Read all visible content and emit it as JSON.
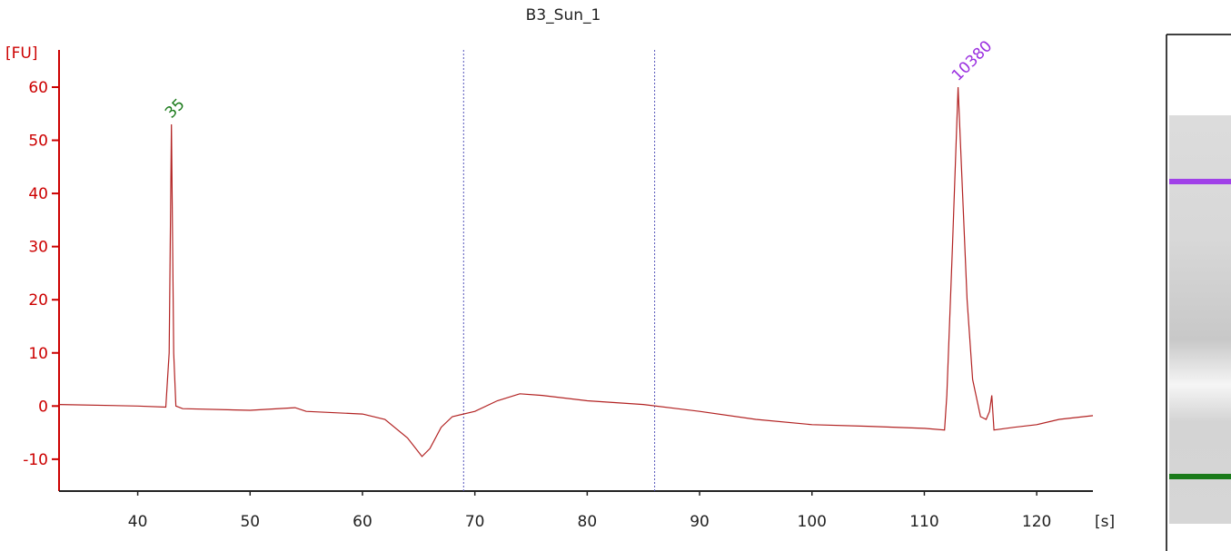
{
  "chart_data": {
    "type": "line",
    "title": "B3_Sun_1",
    "y_label": "[FU]",
    "x_label": "[s]",
    "color": "#b22222",
    "axis_color": "#cc0000",
    "x": [
      33,
      40,
      42.5,
      42.8,
      43,
      43.2,
      43.4,
      44,
      50,
      54,
      55,
      60,
      62,
      64,
      65.3,
      66,
      67,
      68,
      70,
      72,
      74,
      76,
      80,
      85,
      90,
      95,
      100,
      105,
      110,
      111.8,
      112,
      112.5,
      113,
      113.3,
      113.8,
      114.3,
      115,
      115.5,
      115.8,
      116,
      116.2,
      118,
      120,
      122,
      125
    ],
    "values": [
      0.3,
      0,
      -0.2,
      10,
      53,
      10,
      0,
      -0.5,
      -0.8,
      -0.3,
      -1,
      -1.5,
      -2.5,
      -6,
      -9.5,
      -8,
      -4,
      -2,
      -1,
      1,
      2.3,
      2,
      1,
      0.3,
      -1,
      -2.5,
      -3.5,
      -3.8,
      -4.2,
      -4.5,
      2,
      30,
      60,
      45,
      20,
      5,
      -2,
      -2.5,
      -1,
      2,
      -4.5,
      -4,
      -3.5,
      -2.5,
      -1.8
    ],
    "xlim": [
      33,
      125
    ],
    "ylim": [
      -16,
      67
    ],
    "xticks": [
      40,
      50,
      60,
      70,
      80,
      90,
      100,
      110,
      120
    ],
    "yticks": [
      -10,
      0,
      10,
      20,
      30,
      40,
      50,
      60
    ],
    "vlines": [
      69,
      86
    ],
    "annotations": [
      {
        "text": "35",
        "x": 43,
        "y": 53,
        "color": "#1a7a1a"
      },
      {
        "text": "10380",
        "x": 113,
        "y": 60,
        "color": "#9b30e0"
      }
    ]
  }
}
